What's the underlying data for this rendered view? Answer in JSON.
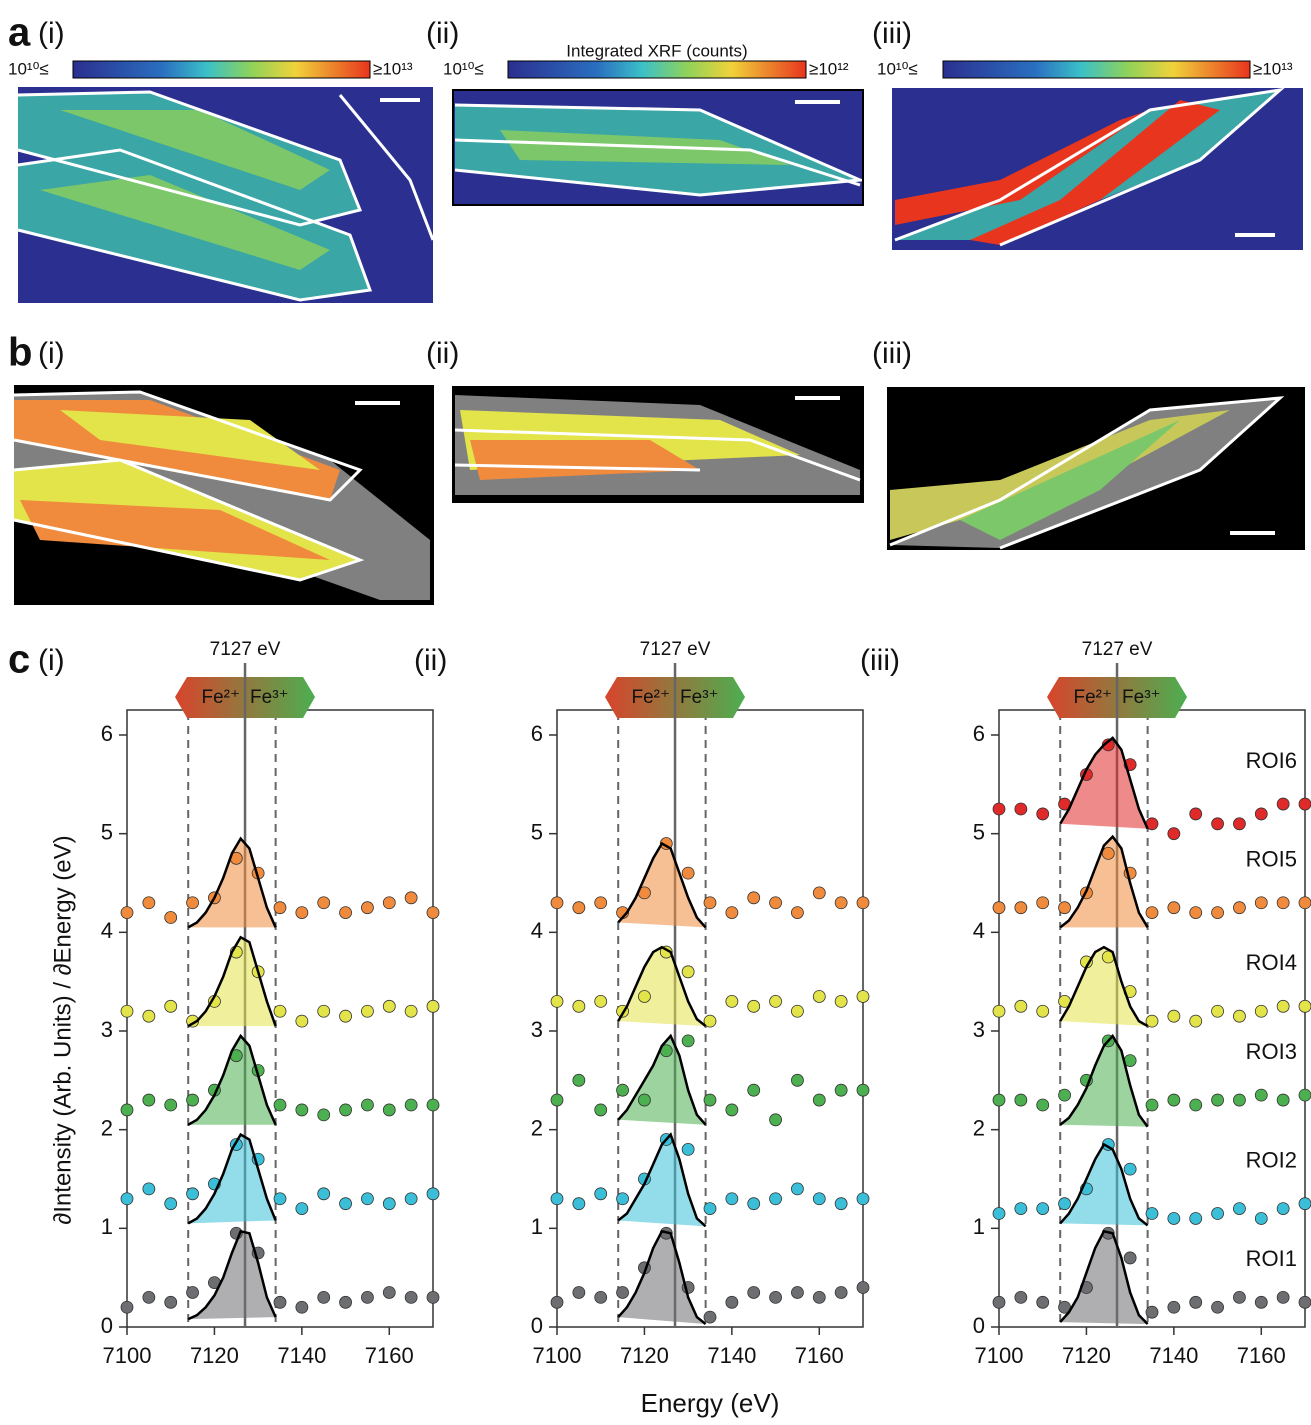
{
  "figure": {
    "a_label": "a",
    "b_label": "b",
    "c_label": "c",
    "sublabels": [
      "(i)",
      "(ii)",
      "(iii)"
    ]
  },
  "colorbars": [
    {
      "min_label": "10¹⁰≤",
      "max_label": "≥10¹³"
    },
    {
      "min_label": "10¹⁰≤",
      "max_label": "≥10¹²",
      "title": "Integrated XRF (counts)"
    },
    {
      "min_label": "10¹⁰≤",
      "max_label": "≥10¹³"
    }
  ],
  "chart_data": [
    {
      "type": "scatter",
      "ylabel": "∂Intensity (Arb. Units) / ∂Energy (eV)",
      "ref_x": 7127,
      "ref_label": "7127 eV",
      "band": [
        7114,
        7134
      ],
      "hline": 0,
      "fe_labels": [
        "Fe²⁺",
        "Fe³⁺"
      ],
      "xlim": [
        7100,
        7170
      ],
      "ylim": [
        0,
        6
      ],
      "xticks": [
        7100,
        7120,
        7140,
        7160
      ],
      "yticks": [
        0,
        1,
        2,
        3,
        4,
        5,
        6
      ],
      "x": [
        7100,
        7105,
        7110,
        7115,
        7120,
        7125,
        7130,
        7135,
        7140,
        7145,
        7150,
        7155,
        7160,
        7165,
        7170
      ],
      "fit_x": [
        7114,
        7116,
        7118,
        7120,
        7122,
        7124,
        7126,
        7128,
        7130,
        7132,
        7134
      ],
      "series": [
        {
          "color": "#6d6e71",
          "values": [
            0.2,
            0.3,
            0.25,
            0.35,
            0.45,
            0.95,
            0.75,
            0.25,
            0.2,
            0.3,
            0.25,
            0.3,
            0.35,
            0.3,
            0.3
          ],
          "fit": [
            0.08,
            0.12,
            0.2,
            0.32,
            0.5,
            0.75,
            0.97,
            0.95,
            0.65,
            0.3,
            0.1
          ]
        },
        {
          "color": "#3bbfd8",
          "values": [
            1.3,
            1.4,
            1.25,
            1.35,
            1.45,
            1.85,
            1.7,
            1.3,
            1.2,
            1.35,
            1.25,
            1.3,
            1.25,
            1.3,
            1.35
          ],
          "fit": [
            1.05,
            1.1,
            1.2,
            1.35,
            1.55,
            1.8,
            1.95,
            1.9,
            1.6,
            1.3,
            1.08
          ]
        },
        {
          "color": "#4caf50",
          "values": [
            2.2,
            2.3,
            2.25,
            2.3,
            2.4,
            2.75,
            2.6,
            2.25,
            2.2,
            2.15,
            2.2,
            2.25,
            2.2,
            2.25,
            2.25
          ],
          "fit": [
            2.05,
            2.1,
            2.2,
            2.35,
            2.55,
            2.8,
            2.95,
            2.85,
            2.55,
            2.25,
            2.05
          ]
        },
        {
          "color": "#e3e34a",
          "values": [
            3.2,
            3.15,
            3.25,
            3.1,
            3.3,
            3.8,
            3.6,
            3.2,
            3.1,
            3.2,
            3.15,
            3.2,
            3.25,
            3.2,
            3.25
          ],
          "fit": [
            3.05,
            3.1,
            3.2,
            3.35,
            3.55,
            3.8,
            3.95,
            3.9,
            3.6,
            3.3,
            3.05
          ]
        },
        {
          "color": "#f08a3c",
          "values": [
            4.2,
            4.3,
            4.15,
            4.3,
            4.35,
            4.75,
            4.6,
            4.25,
            4.2,
            4.3,
            4.2,
            4.25,
            4.3,
            4.35,
            4.2
          ],
          "fit": [
            4.05,
            4.1,
            4.2,
            4.35,
            4.55,
            4.8,
            4.95,
            4.85,
            4.55,
            4.25,
            4.05
          ]
        }
      ]
    },
    {
      "type": "scatter",
      "xlabel": "Energy (eV)",
      "ref_x": 7127,
      "ref_label": "7127 eV",
      "band": [
        7114,
        7134
      ],
      "hline": 0,
      "fe_labels": [
        "Fe²⁺",
        "Fe³⁺"
      ],
      "xlim": [
        7100,
        7170
      ],
      "ylim": [
        0,
        6
      ],
      "xticks": [
        7100,
        7120,
        7140,
        7160
      ],
      "yticks": [
        0,
        1,
        2,
        3,
        4,
        5,
        6
      ],
      "x": [
        7100,
        7105,
        7110,
        7115,
        7120,
        7125,
        7130,
        7135,
        7140,
        7145,
        7150,
        7155,
        7160,
        7165,
        7170
      ],
      "fit_x": [
        7114,
        7116,
        7118,
        7120,
        7122,
        7124,
        7126,
        7128,
        7130,
        7132,
        7134
      ],
      "series": [
        {
          "color": "#6d6e71",
          "values": [
            0.25,
            0.35,
            0.3,
            0.35,
            0.6,
            0.95,
            0.4,
            0.1,
            0.25,
            0.35,
            0.3,
            0.35,
            0.3,
            0.35,
            0.4
          ],
          "fit": [
            0.1,
            0.2,
            0.35,
            0.55,
            0.8,
            0.97,
            0.95,
            0.65,
            0.3,
            0.1,
            0.03
          ]
        },
        {
          "color": "#3bbfd8",
          "values": [
            1.3,
            1.25,
            1.35,
            1.3,
            1.5,
            1.9,
            1.8,
            1.2,
            1.3,
            1.25,
            1.3,
            1.4,
            1.3,
            1.25,
            1.3
          ],
          "fit": [
            1.08,
            1.15,
            1.3,
            1.45,
            1.65,
            1.85,
            1.95,
            1.7,
            1.35,
            1.1,
            1.02
          ]
        },
        {
          "color": "#4caf50",
          "values": [
            2.3,
            2.5,
            2.2,
            2.4,
            2.3,
            2.8,
            2.9,
            2.3,
            2.2,
            2.4,
            2.1,
            2.5,
            2.3,
            2.4,
            2.4
          ],
          "fit": [
            2.1,
            2.2,
            2.35,
            2.5,
            2.65,
            2.85,
            2.95,
            2.75,
            2.4,
            2.15,
            2.05
          ]
        },
        {
          "color": "#e3e34a",
          "values": [
            3.3,
            3.25,
            3.3,
            3.2,
            3.35,
            3.8,
            3.6,
            3.1,
            3.3,
            3.25,
            3.3,
            3.2,
            3.35,
            3.3,
            3.35
          ],
          "fit": [
            3.1,
            3.25,
            3.45,
            3.65,
            3.8,
            3.85,
            3.8,
            3.55,
            3.3,
            3.12,
            3.05
          ]
        },
        {
          "color": "#f08a3c",
          "values": [
            4.3,
            4.25,
            4.3,
            4.2,
            4.4,
            4.9,
            4.6,
            4.3,
            4.2,
            4.35,
            4.3,
            4.2,
            4.4,
            4.3,
            4.3
          ],
          "fit": [
            4.1,
            4.2,
            4.35,
            4.55,
            4.75,
            4.9,
            4.85,
            4.6,
            4.35,
            4.15,
            4.05
          ]
        }
      ]
    },
    {
      "type": "scatter",
      "ref_x": 7127,
      "ref_label": "7127 eV",
      "band": [
        7114,
        7134
      ],
      "hline": 0,
      "fe_labels": [
        "Fe²⁺",
        "Fe³⁺"
      ],
      "xlim": [
        7100,
        7170
      ],
      "ylim": [
        0,
        6
      ],
      "xticks": [
        7100,
        7120,
        7140,
        7160
      ],
      "yticks": [
        0,
        1,
        2,
        3,
        4,
        5,
        6
      ],
      "x": [
        7100,
        7105,
        7110,
        7115,
        7120,
        7125,
        7130,
        7135,
        7140,
        7145,
        7150,
        7155,
        7160,
        7165,
        7170
      ],
      "fit_x": [
        7114,
        7116,
        7118,
        7120,
        7122,
        7124,
        7126,
        7128,
        7130,
        7132,
        7134
      ],
      "series": [
        {
          "name": "ROI1",
          "color": "#6d6e71",
          "values": [
            0.25,
            0.3,
            0.25,
            0.2,
            0.4,
            0.95,
            0.7,
            0.15,
            0.2,
            0.25,
            0.2,
            0.3,
            0.25,
            0.3,
            0.25
          ],
          "fit": [
            0.05,
            0.15,
            0.3,
            0.55,
            0.8,
            0.97,
            0.95,
            0.7,
            0.35,
            0.12,
            0.03
          ]
        },
        {
          "name": "ROI2",
          "color": "#3bbfd8",
          "values": [
            1.15,
            1.2,
            1.2,
            1.25,
            1.4,
            1.85,
            1.6,
            1.15,
            1.1,
            1.1,
            1.15,
            1.2,
            1.1,
            1.2,
            1.25
          ],
          "fit": [
            1.05,
            1.15,
            1.3,
            1.5,
            1.7,
            1.85,
            1.8,
            1.6,
            1.3,
            1.1,
            1.03
          ]
        },
        {
          "name": "ROI3",
          "color": "#4caf50",
          "values": [
            2.3,
            2.3,
            2.25,
            2.35,
            2.5,
            2.9,
            2.7,
            2.25,
            2.3,
            2.25,
            2.3,
            2.3,
            2.35,
            2.3,
            2.35
          ],
          "fit": [
            2.05,
            2.12,
            2.25,
            2.42,
            2.65,
            2.85,
            2.95,
            2.8,
            2.45,
            2.15,
            2.03
          ]
        },
        {
          "name": "ROI4",
          "color": "#e3e34a",
          "values": [
            3.2,
            3.25,
            3.2,
            3.3,
            3.7,
            3.75,
            3.4,
            3.1,
            3.15,
            3.1,
            3.2,
            3.15,
            3.2,
            3.25,
            3.25
          ],
          "fit": [
            3.1,
            3.25,
            3.45,
            3.65,
            3.8,
            3.85,
            3.8,
            3.5,
            3.25,
            3.1,
            3.05
          ]
        },
        {
          "name": "ROI5",
          "color": "#f08a3c",
          "values": [
            4.25,
            4.25,
            4.3,
            4.25,
            4.4,
            4.8,
            4.6,
            4.2,
            4.25,
            4.2,
            4.2,
            4.25,
            4.3,
            4.3,
            4.3
          ],
          "fit": [
            4.05,
            4.12,
            4.25,
            4.42,
            4.65,
            4.88,
            4.97,
            4.85,
            4.5,
            4.2,
            4.05
          ]
        },
        {
          "name": "ROI6",
          "color": "#e02a2a",
          "values": [
            5.25,
            5.25,
            5.2,
            5.3,
            5.6,
            5.9,
            5.7,
            5.1,
            5.0,
            5.2,
            5.1,
            5.1,
            5.2,
            5.3,
            5.3
          ],
          "fit": [
            5.1,
            5.25,
            5.45,
            5.65,
            5.8,
            5.9,
            5.97,
            5.85,
            5.55,
            5.25,
            5.05
          ]
        }
      ]
    }
  ]
}
